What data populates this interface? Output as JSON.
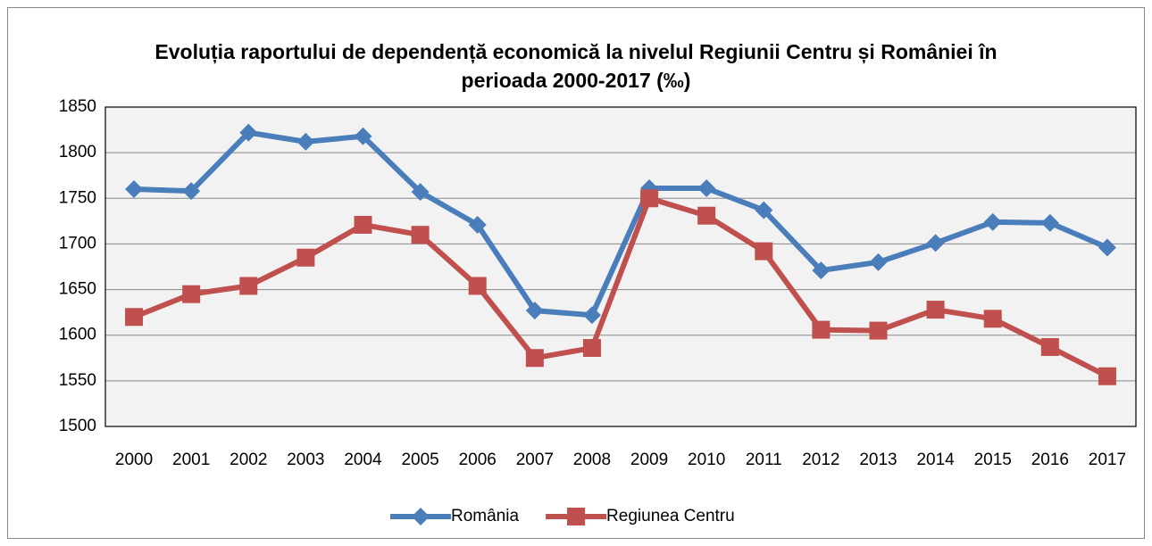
{
  "chart_data": {
    "type": "line",
    "title": "Evoluția raportului de dependență economică la nivelul Regiunii Centru și României în perioada 2000-2017 (‰)",
    "categories": [
      "2000",
      "2001",
      "2002",
      "2003",
      "2004",
      "2005",
      "2006",
      "2007",
      "2008",
      "2009",
      "2010",
      "2011",
      "2012",
      "2013",
      "2014",
      "2015",
      "2016",
      "2017"
    ],
    "series": [
      {
        "name": "România",
        "color": "#4a7ebb",
        "marker": "diamond",
        "values": [
          1760,
          1758,
          1822,
          1812,
          1818,
          1757,
          1721,
          1627,
          1622,
          1761,
          1761,
          1737,
          1671,
          1680,
          1701,
          1724,
          1723,
          1696
        ]
      },
      {
        "name": "Regiunea Centru",
        "color": "#c0504d",
        "marker": "square",
        "values": [
          1620,
          1645,
          1654,
          1685,
          1721,
          1710,
          1654,
          1575,
          1586,
          1750,
          1731,
          1692,
          1606,
          1605,
          1628,
          1618,
          1587,
          1555
        ]
      }
    ],
    "ylim": [
      1500,
      1850
    ],
    "yticks": [
      1500,
      1550,
      1600,
      1650,
      1700,
      1750,
      1800,
      1850
    ],
    "grid": true,
    "legend": "bottom"
  }
}
